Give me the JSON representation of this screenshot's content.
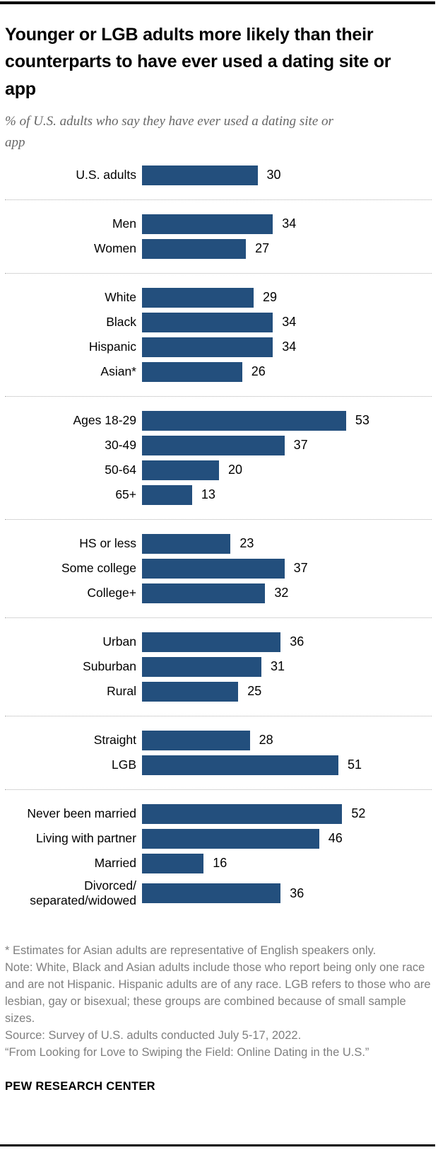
{
  "header": {
    "title": "Younger or LGB adults more likely than their counterparts to have ever used a dating site or app",
    "subtitle": "% of U.S. adults who say they have ever used a dating site or app"
  },
  "chart_data": {
    "type": "bar",
    "orientation": "horizontal",
    "value_unit": "percent",
    "bar_color": "#234f7d",
    "xlim": [
      0,
      57
    ],
    "grid": false,
    "legend": "none",
    "sections": [
      {
        "rows": [
          {
            "label": "U.S. adults",
            "value": 30
          }
        ]
      },
      {
        "rows": [
          {
            "label": "Men",
            "value": 34
          },
          {
            "label": "Women",
            "value": 27
          }
        ]
      },
      {
        "rows": [
          {
            "label": "White",
            "value": 29
          },
          {
            "label": "Black",
            "value": 34
          },
          {
            "label": "Hispanic",
            "value": 34
          },
          {
            "label": "Asian*",
            "value": 26
          }
        ]
      },
      {
        "rows": [
          {
            "label": "Ages 18-29",
            "value": 53
          },
          {
            "label": "30-49",
            "value": 37
          },
          {
            "label": "50-64",
            "value": 20
          },
          {
            "label": "65+",
            "value": 13
          }
        ]
      },
      {
        "rows": [
          {
            "label": "HS or less",
            "value": 23
          },
          {
            "label": "Some college",
            "value": 37
          },
          {
            "label": "College+",
            "value": 32
          }
        ]
      },
      {
        "rows": [
          {
            "label": "Urban",
            "value": 36
          },
          {
            "label": "Suburban",
            "value": 31
          },
          {
            "label": "Rural",
            "value": 25
          }
        ]
      },
      {
        "rows": [
          {
            "label": "Straight",
            "value": 28
          },
          {
            "label": "LGB",
            "value": 51
          }
        ]
      },
      {
        "rows": [
          {
            "label": "Never been married",
            "value": 52
          },
          {
            "label": "Living with partner",
            "value": 46
          },
          {
            "label": "Married",
            "value": 16
          },
          {
            "label": "Divorced/\nseparated/widowed",
            "value": 36
          }
        ]
      }
    ]
  },
  "footnotes": {
    "asterisk": "* Estimates for Asian adults are representative of English speakers only.",
    "note": "Note: White, Black and Asian adults include those who report being only one race and are not Hispanic. Hispanic adults are of any race. LGB refers to those who are lesbian, gay or bisexual; these groups are combined because of small sample sizes.",
    "source": "Source: Survey of U.S. adults conducted July 5-17, 2022.",
    "report": "“From Looking for Love to Swiping the Field: Online Dating in the U.S.”"
  },
  "footer": {
    "brand": "PEW RESEARCH CENTER"
  }
}
